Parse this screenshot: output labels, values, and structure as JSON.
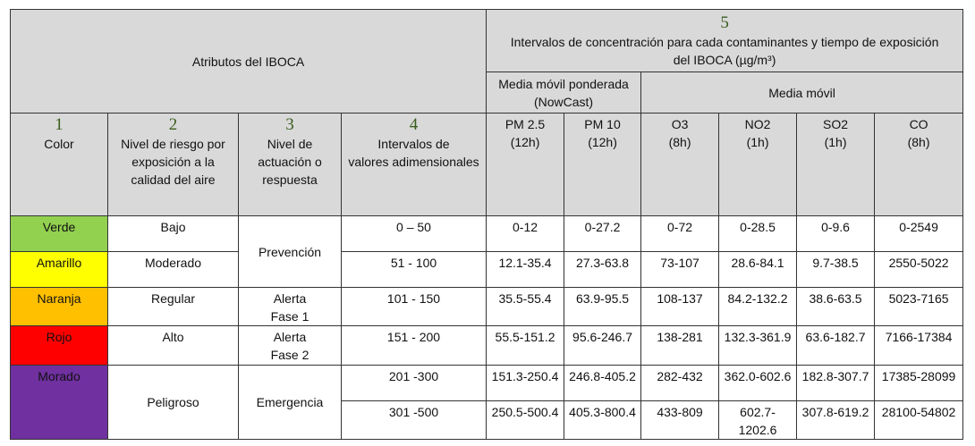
{
  "header": {
    "attributes_title": "Atributos del IBOCA",
    "group5_number": "5",
    "group5_title_line1": "Intervalos de concentración para cada contaminantes y tiempo de exposición",
    "group5_title_line2": "del IBOCA (µg/m³)",
    "nowcast_label_line1": "Media móvil ponderada",
    "nowcast_label_line2": "(NowCast)",
    "moving_avg_label": "Media móvil"
  },
  "columns": [
    {
      "num": "1",
      "lines": [
        "Color"
      ]
    },
    {
      "num": "2",
      "lines": [
        "Nivel de riesgo por",
        "exposición a la",
        "calidad del aire"
      ]
    },
    {
      "num": "3",
      "lines": [
        "Nivel de",
        "actuación o",
        "respuesta"
      ]
    },
    {
      "num": "4",
      "lines": [
        "Intervalos de",
        "valores adimensionales"
      ]
    },
    {
      "lines": [
        "PM 2.5",
        "(12h)"
      ]
    },
    {
      "lines": [
        "PM 10",
        "(12h)"
      ]
    },
    {
      "lines": [
        "O3",
        "(8h)"
      ]
    },
    {
      "lines": [
        "NO2",
        "(1h)"
      ]
    },
    {
      "lines": [
        "SO2",
        "(1h)"
      ]
    },
    {
      "lines": [
        "CO",
        "(8h)"
      ]
    }
  ],
  "rows": [
    {
      "color": "Verde",
      "bg": "#92d050",
      "risk": "Bajo",
      "interval": "0 – 50",
      "values": [
        "0-12",
        "0-27.2",
        "0-72",
        "0-28.5",
        "0-9.6",
        "0-2549"
      ]
    },
    {
      "color": "Amarillo",
      "bg": "#ffff00",
      "risk": "Moderado",
      "interval": "51 - 100",
      "values": [
        "12.1-35.4",
        "27.3-63.8",
        "73-107",
        "28.6-84.1",
        "9.7-38.5",
        "2550-5022"
      ]
    },
    {
      "color": "Naranja",
      "bg": "#ffc000",
      "risk": "Regular",
      "interval": "101 - 150",
      "values": [
        "35.5-55.4",
        "63.9-95.5",
        "108-137",
        "84.2-132.2",
        "38.6-63.5",
        "5023-7165"
      ]
    },
    {
      "color": "Rojo",
      "bg": "#ff0000",
      "risk": "Alto",
      "interval": "151 - 200",
      "values": [
        "55.5-151.2",
        "95.6-246.7",
        "138-281",
        "132.3-361.9",
        "63.6-182.7",
        "7166-17384"
      ]
    },
    {
      "color": "Morado",
      "bg": "#7030a0",
      "risk": "Peligroso",
      "interval": "201 -300",
      "values": [
        "151.3-250.4",
        "246.8-405.2",
        "282-432",
        "362.0-602.6",
        "182.8-307.7",
        "17385-28099"
      ]
    },
    {
      "interval": "301 -500",
      "values": [
        "250.5-500.4",
        "405.3-800.4",
        "433-809",
        "602.7-1202.6",
        "307.8-619.2",
        "28100-54802"
      ]
    }
  ],
  "actions": {
    "prevencion": "Prevención",
    "alerta1_line1": "Alerta",
    "alerta1_line2": "Fase 1",
    "alerta2_line1": "Alerta",
    "alerta2_line2": "Fase 2",
    "emergencia": "Emergencia"
  }
}
